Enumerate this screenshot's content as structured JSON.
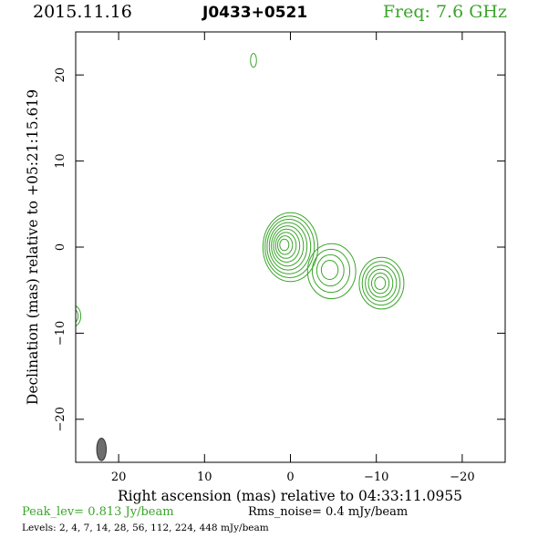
{
  "header": {
    "date": "2015.11.16",
    "source": "J0433+0521",
    "freq": "Freq: 7.6 GHz"
  },
  "footer": {
    "peak": "Peak_lev=  0.813 Jy/beam",
    "rms": "Rms_noise=   0.4 mJy/beam",
    "levels": "Levels:   2,    4,    7,   14,   28,   56,  112,  224,  448  mJy/beam"
  },
  "colors": {
    "contour": "#3aa52a",
    "beam": "#6e6e6e",
    "axis": "#000000"
  },
  "chart_data": {
    "type": "contour",
    "title": "J0433+0521",
    "xlabel": "Right ascension (mas) relative to 04:33:11.0955",
    "ylabel": "Declination (mas) relative to +05:21:15.619",
    "xlim": [
      25,
      -25
    ],
    "ylim": [
      -25,
      25
    ],
    "xticks": [
      20,
      10,
      0,
      -10,
      -20
    ],
    "xtick_labels": [
      "20",
      "10",
      "0",
      "−10",
      "−20"
    ],
    "yticks": [
      20,
      10,
      0,
      -10,
      -20
    ],
    "ytick_labels": [
      "20",
      "10",
      "0",
      "−10",
      "−20"
    ],
    "grid": false,
    "contour_levels_mJy": [
      2,
      4,
      7,
      14,
      28,
      56,
      112,
      224,
      448
    ],
    "components": [
      {
        "name": "core",
        "x": 0,
        "y": 0,
        "rx": 3.2,
        "ry": 4.0,
        "n": 9,
        "dx": 0.8,
        "dy": 0.3
      },
      {
        "name": "jet-1",
        "x": -4.8,
        "y": -2.8,
        "rx": 2.8,
        "ry": 3.2,
        "n": 4,
        "dx": 0.3,
        "dy": 0.2
      },
      {
        "name": "jet-2",
        "x": -10.6,
        "y": -4.2,
        "rx": 2.6,
        "ry": 3.0,
        "n": 6,
        "dx": 0.2,
        "dy": 0.0
      },
      {
        "name": "blob-north",
        "x": 4.3,
        "y": 21.7,
        "rx": 0.35,
        "ry": 0.8,
        "n": 1,
        "dx": 0,
        "dy": 0
      },
      {
        "name": "blob-west",
        "x": 25.2,
        "y": -8.0,
        "rx": 0.8,
        "ry": 1.2,
        "n": 2,
        "dx": 0,
        "dy": 0
      }
    ],
    "beam": {
      "x": 22,
      "y": -23.5,
      "major_mas": 2.6,
      "minor_mas": 1.1,
      "pa_deg": 0
    }
  }
}
